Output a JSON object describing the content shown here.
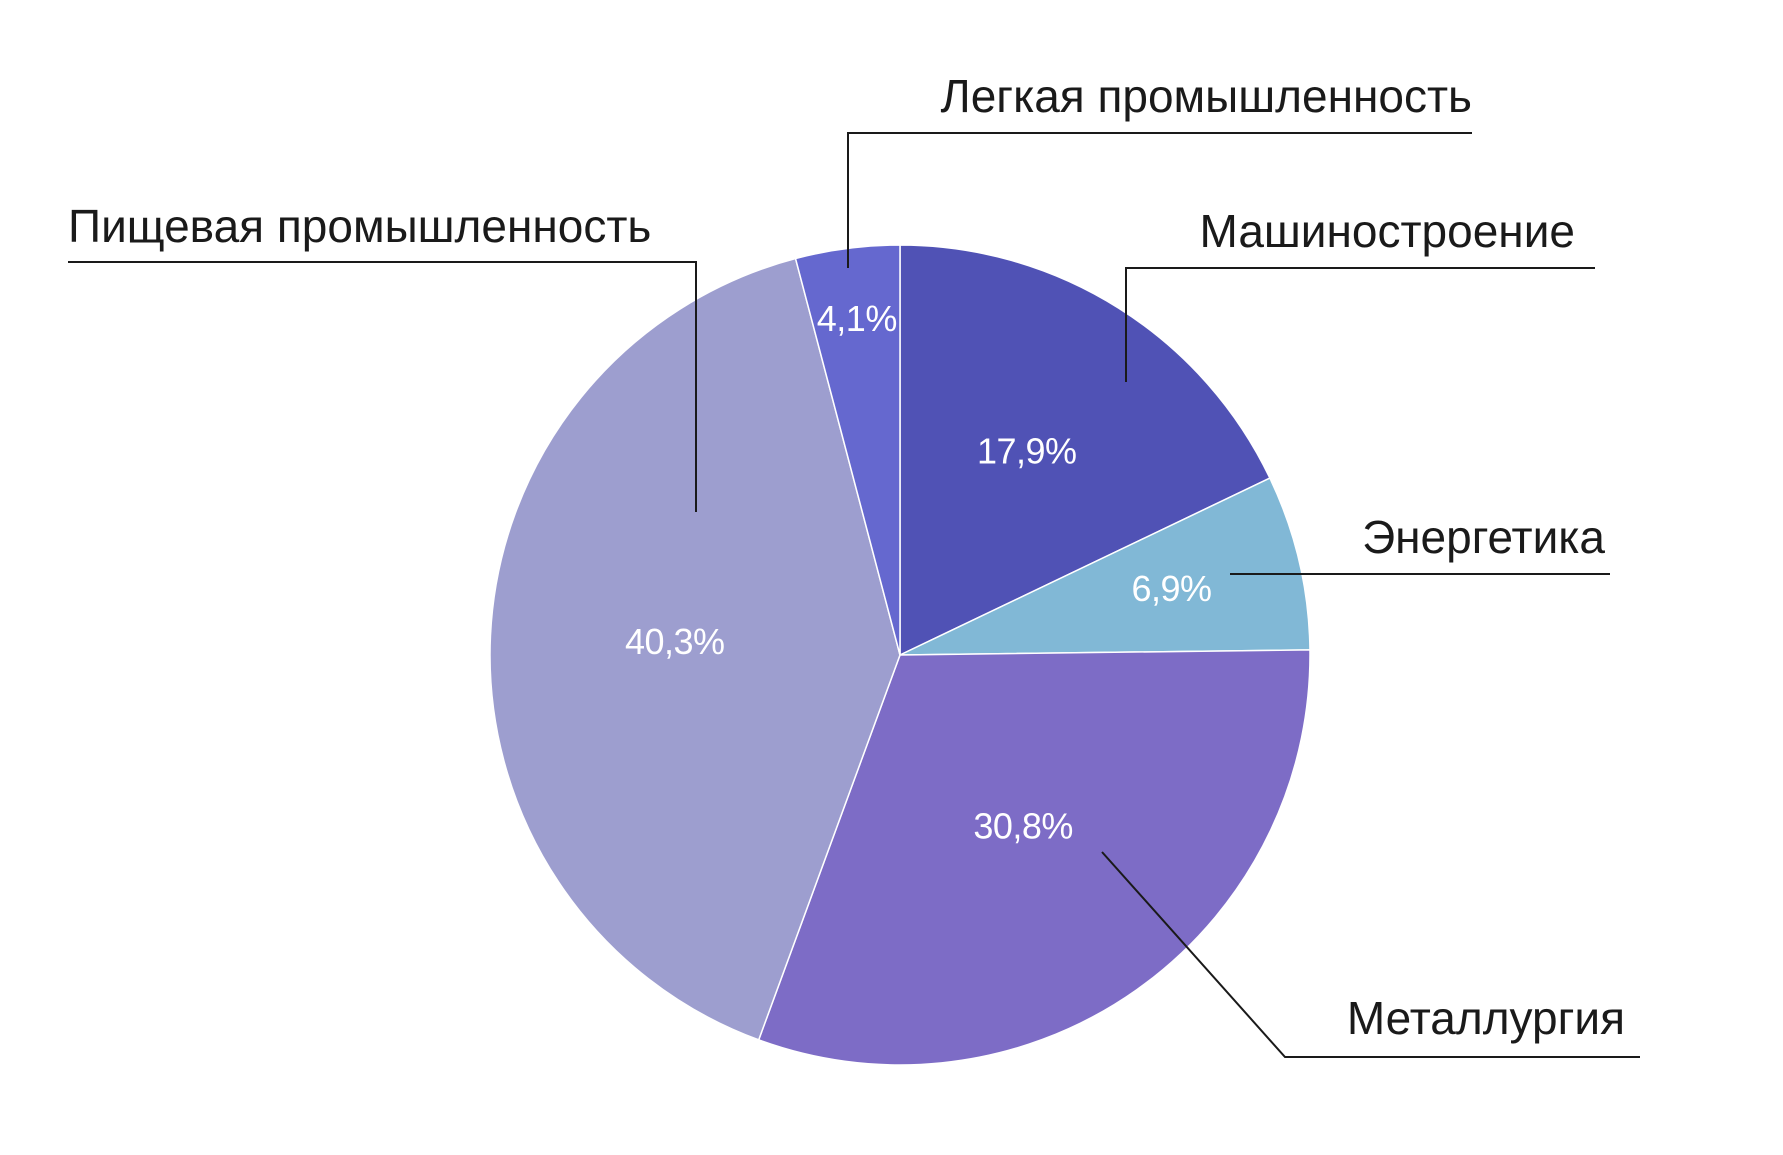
{
  "chart_data": {
    "type": "pie",
    "title": "",
    "slices": [
      {
        "label": "Машиностроение",
        "value": 17.9,
        "value_label": "17,9%",
        "color": "#5052b5"
      },
      {
        "label": "Энергетика",
        "value": 6.9,
        "value_label": "6,9%",
        "color": "#81b8d6"
      },
      {
        "label": "Металлургия",
        "value": 30.8,
        "value_label": "30,8%",
        "color": "#7d6cc6"
      },
      {
        "label": "Пищевая промышленность",
        "value": 40.3,
        "value_label": "40,3%",
        "color": "#9d9ecf"
      },
      {
        "label": "Легкая промышленность",
        "value": 4.1,
        "value_label": "4,1%",
        "color": "#6568cf"
      }
    ],
    "start_angle": "top",
    "direction": "clockwise",
    "labels": "outside-with-leader-lines"
  }
}
